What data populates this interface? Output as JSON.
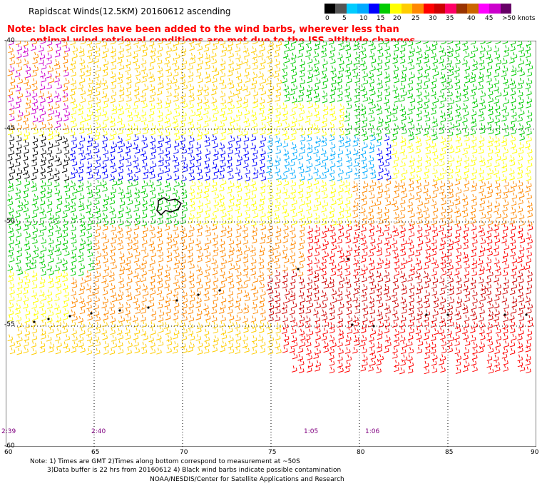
{
  "title": "Rapidscat Winds(12.5KM) 20160612 ascending",
  "note_line1": "Note: black circles have been added to the wind barbs, wherever less than",
  "note_line2": "optimal wind retrieval conditions are met due to the ISS altitude changes.",
  "legend": {
    "labels": [
      "0",
      "5",
      "10",
      "15",
      "20",
      "25",
      "30",
      "35",
      "40",
      "45",
      ">50 knots"
    ],
    "colors": [
      "#000000",
      "#555555",
      "#00ccff",
      "#00aaff",
      "#0000ff",
      "#00cc00",
      "#ffff00",
      "#ffcc00",
      "#ff8800",
      "#ff0000",
      "#cc0000",
      "#ff0066",
      "#993300",
      "#cc6600",
      "#ff00ff",
      "#cc00cc",
      "#660066"
    ]
  },
  "lat_labels": [
    "-40",
    "-45",
    "-50",
    "-55",
    "-60"
  ],
  "lon_labels": [
    "60",
    "65",
    "70",
    "75",
    "80",
    "85",
    "90"
  ],
  "times": [
    "2:39",
    "2:40",
    "1:05",
    "1:06"
  ],
  "footer_line1": "Note: 1) Times are GMT 2)Times along bottom correspond to measurement at ~50S",
  "footer_line2": "3)Data buffer is 22 hrs from 20160612 4) Black wind barbs indicate possible contamination",
  "footer_line3": "NOAA/NESDIS/Center for Satellite Applications and Research"
}
